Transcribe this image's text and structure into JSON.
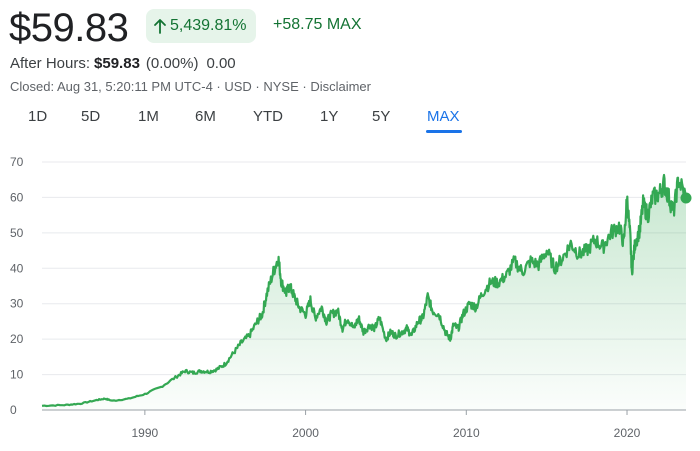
{
  "quote": {
    "price": "$59.83",
    "change_pct": "5,439.81%",
    "change_abs": "+58.75",
    "range_label": "MAX",
    "after_hours_label": "After Hours:",
    "after_hours_price": "$59.83",
    "after_hours_pct": "(0.00%)",
    "after_hours_abs": "0.00",
    "closed_line": "Closed: Aug 31, 5:20:11 PM UTC-4 · USD · NYSE · Disclaimer"
  },
  "colors": {
    "up": "#137333",
    "line": "#34a853",
    "active": "#1a73e8"
  },
  "icons": {
    "change_arrow": "arrow-up-icon"
  },
  "ranges": [
    "1D",
    "5D",
    "1M",
    "6M",
    "YTD",
    "1Y",
    "5Y",
    "MAX"
  ],
  "active_range": "MAX",
  "chart_data": {
    "type": "area",
    "title": "",
    "xlabel": "",
    "ylabel": "",
    "xlim": [
      1983.6,
      2023.67
    ],
    "ylim": [
      0,
      70
    ],
    "yticks": [
      0,
      10,
      20,
      30,
      40,
      50,
      60,
      70
    ],
    "xticks": [
      1990,
      2000,
      2010,
      2020
    ],
    "grid": "horizontal",
    "legend": "none",
    "last_value": 59.83,
    "series": [
      {
        "x": [
          1983.6,
          1985,
          1986,
          1987,
          1987.5,
          1988,
          1989,
          1990,
          1991,
          1992,
          1992.5,
          1993,
          1993.5,
          1994,
          1994.5,
          1995,
          1995.5,
          1996,
          1996.5,
          1997,
          1997.3,
          1997.6,
          1998,
          1998.3,
          1998.5,
          1998.8,
          1999,
          1999.3,
          1999.6,
          2000,
          2000.3,
          2000.6,
          2001,
          2001.3,
          2001.6,
          2002,
          2002.3,
          2002.6,
          2003,
          2003.3,
          2003.6,
          2004,
          2004.3,
          2004.6,
          2005,
          2005.3,
          2005.6,
          2006,
          2006.3,
          2006.6,
          2007,
          2007.3,
          2007.6,
          2007.9,
          2008.3,
          2008.7,
          2009,
          2009.2,
          2009.5,
          2009.8,
          2010.2,
          2010.6,
          2011,
          2011.5,
          2012,
          2012.5,
          2013,
          2013.5,
          2014,
          2014.5,
          2015,
          2015.5,
          2016,
          2016.5,
          2017,
          2017.5,
          2018,
          2018.5,
          2019,
          2019.5,
          2019.8,
          2020.0,
          2020.2,
          2020.3,
          2020.5,
          2020.8,
          2021,
          2021.3,
          2021.6,
          2022,
          2022.3,
          2022.6,
          2022.9,
          2023.2,
          2023.67
        ],
        "y": [
          1.2,
          1.4,
          1.8,
          2.8,
          3.2,
          2.6,
          3.2,
          4.5,
          6.5,
          9.5,
          11,
          10.5,
          11,
          10.8,
          11.5,
          13,
          16,
          19,
          21,
          25,
          27,
          33,
          39,
          43,
          36,
          33,
          35,
          32,
          29,
          27,
          31,
          26,
          29,
          25,
          27,
          28,
          23,
          26,
          23,
          26,
          22,
          24,
          23,
          26,
          20,
          22,
          21,
          22,
          23,
          21,
          25,
          26,
          32,
          28,
          27,
          22,
          20,
          24,
          23,
          27,
          30,
          29,
          33,
          36,
          36,
          38,
          42,
          39,
          42,
          41,
          45,
          40,
          43,
          47,
          44,
          45,
          48,
          46,
          50,
          52,
          47,
          60,
          49,
          39,
          47,
          51,
          58,
          55,
          60,
          61,
          64,
          60,
          56,
          65,
          60
        ]
      }
    ]
  }
}
